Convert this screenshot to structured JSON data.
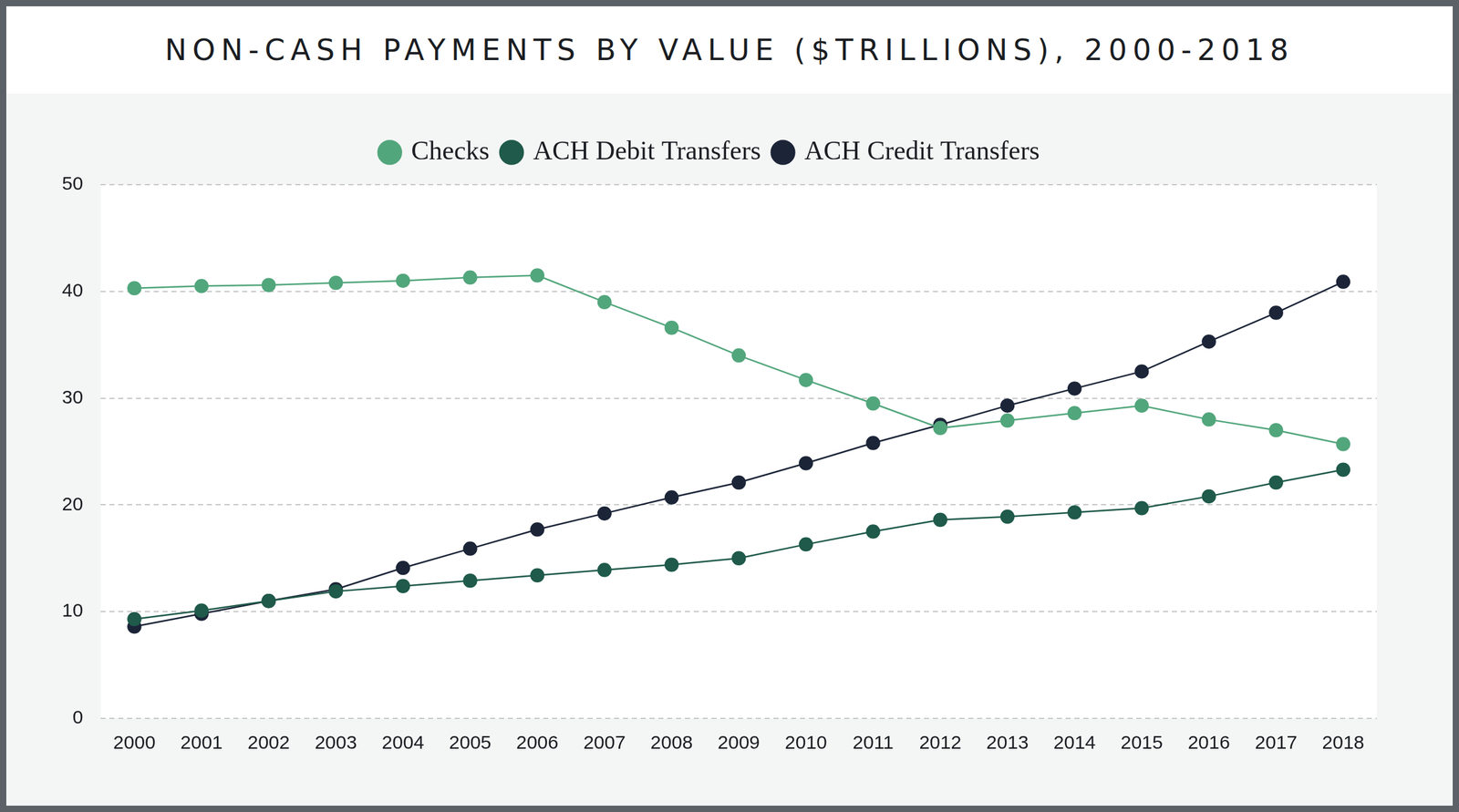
{
  "chart_data": {
    "type": "line",
    "title": "NON-CASH PAYMENTS BY VALUE ($TRILLIONS), 2000-2018",
    "categories": [
      "2000",
      "2001",
      "2002",
      "2003",
      "2004",
      "2005",
      "2006",
      "2007",
      "2008",
      "2009",
      "2010",
      "2011",
      "2012",
      "2013",
      "2014",
      "2015",
      "2016",
      "2017",
      "2018"
    ],
    "series": [
      {
        "name": "Checks",
        "color": "#52a67c",
        "values": [
          40.3,
          40.5,
          40.6,
          40.8,
          41.0,
          41.3,
          41.5,
          39.0,
          36.6,
          34.0,
          31.7,
          29.5,
          27.2,
          27.9,
          28.6,
          29.3,
          28.0,
          27.0,
          25.7
        ]
      },
      {
        "name": "ACH Debit Transfers",
        "color": "#1f5a4a",
        "values": [
          9.3,
          10.1,
          11.0,
          11.9,
          12.4,
          12.9,
          13.4,
          13.9,
          14.4,
          15.0,
          16.3,
          17.5,
          18.6,
          18.9,
          19.3,
          19.7,
          20.8,
          22.1,
          23.3
        ]
      },
      {
        "name": "ACH Credit Transfers",
        "color": "#1c2538",
        "values": [
          8.6,
          9.8,
          11.0,
          12.1,
          14.1,
          15.9,
          17.7,
          19.2,
          20.7,
          22.1,
          23.9,
          25.8,
          27.5,
          29.3,
          30.9,
          32.5,
          35.3,
          38.0,
          40.9
        ]
      }
    ],
    "ylim": [
      0,
      50
    ],
    "yticks": [
      0,
      10,
      20,
      30,
      40,
      50
    ],
    "grid": true,
    "legend": "top",
    "marker": "circle"
  }
}
